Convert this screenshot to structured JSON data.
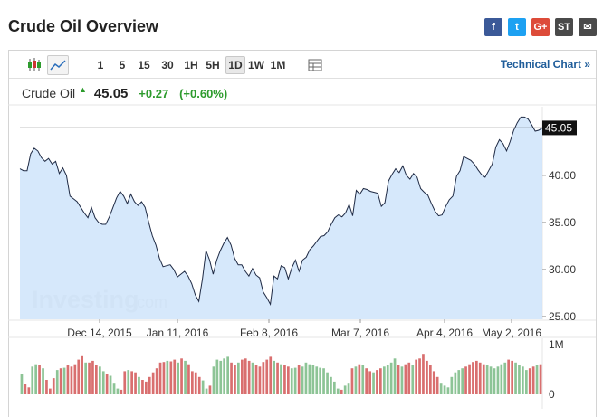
{
  "header": {
    "title": "Crude Oil Overview",
    "share_icons": [
      {
        "name": "facebook-icon",
        "glyph": "f",
        "color": "#3b5998"
      },
      {
        "name": "twitter-icon",
        "glyph": "t",
        "color": "#1da1f2"
      },
      {
        "name": "google-plus-icon",
        "glyph": "G+",
        "color": "#dd4b39"
      },
      {
        "name": "stocktwits-icon",
        "glyph": "ST",
        "color": "#4a4a4a"
      },
      {
        "name": "email-icon",
        "glyph": "✉",
        "color": "#4a4a4a"
      }
    ]
  },
  "toolbar": {
    "intervals": [
      "1",
      "5",
      "15",
      "30",
      "1H",
      "5H",
      "1D",
      "1W",
      "1M"
    ],
    "active_interval": "1D",
    "technical_chart_label": "Technical Chart »"
  },
  "quote": {
    "name": "Crude Oil",
    "direction": "up",
    "price": "45.05",
    "change": "+0.27",
    "change_pct": "(+0.60%)"
  },
  "chart_data": {
    "type": "area",
    "watermark": "Investing",
    "watermark_suffix": ".com",
    "x_tick_labels": [
      "Dec 14, 2015",
      "Jan 11, 2016",
      "Feb 8, 2016",
      "Mar 7, 2016",
      "Apr 4, 2016",
      "May 2, 2016"
    ],
    "y_ticks": [
      25.0,
      30.0,
      35.0,
      40.0
    ],
    "y_tick_labels": [
      "25.00",
      "30.00",
      "35.00",
      "40.00"
    ],
    "ylim": [
      24.7,
      47.3
    ],
    "last_price_label": "45.05",
    "last_price": 45.05,
    "series": [
      {
        "values": [
          40.7,
          40.5,
          40.5,
          42.3,
          42.9,
          42.6,
          41.9,
          41.5,
          41.8,
          41.2,
          41.5,
          40.2,
          40.8,
          40.0,
          37.8,
          37.5,
          37.2,
          36.6,
          36.0,
          35.5,
          36.6,
          35.5,
          35.0,
          34.8,
          34.8,
          35.6,
          36.6,
          37.6,
          38.3,
          37.8,
          37.0,
          38.0,
          37.2,
          36.8,
          37.2,
          36.6,
          35.0,
          33.6,
          32.6,
          31.2,
          30.3,
          30.4,
          30.5,
          30.0,
          29.2,
          29.5,
          29.8,
          29.3,
          28.5,
          27.3,
          26.6,
          29.0,
          32.0,
          31.0,
          29.5,
          31.0,
          32.0,
          32.8,
          33.4,
          32.6,
          31.2,
          30.5,
          30.5,
          29.8,
          29.3,
          30.1,
          29.4,
          29.1,
          27.6,
          27.0,
          26.3,
          29.3,
          29.0,
          30.4,
          30.2,
          29.0,
          30.2,
          31.0,
          29.8,
          31.0,
          31.3,
          32.1,
          32.5,
          33.0,
          33.5,
          33.6,
          34.0,
          34.8,
          35.5,
          35.8,
          35.6,
          36.0,
          36.9,
          35.7,
          38.4,
          38.0,
          38.6,
          38.5,
          38.3,
          38.2,
          38.1,
          36.7,
          37.1,
          39.4,
          40.1,
          40.7,
          40.3,
          41.0,
          40.0,
          39.6,
          40.2,
          39.8,
          38.6,
          38.2,
          37.9,
          37.0,
          36.2,
          35.7,
          35.8,
          36.7,
          37.4,
          37.8,
          39.9,
          40.5,
          42.0,
          41.8,
          41.6,
          41.2,
          40.6,
          40.1,
          39.8,
          40.5,
          41.2,
          43.0,
          43.8,
          43.4,
          42.6,
          43.6,
          44.8,
          45.6,
          46.2,
          46.2,
          46.0,
          45.4,
          44.7,
          44.8,
          45.05
        ]
      }
    ],
    "volume": {
      "max_label": "1M",
      "min_label": "0",
      "up_color": "#8dc496",
      "down_color": "#d96f6f",
      "values": [
        0.35,
        0.18,
        0.12,
        0.48,
        0.52,
        0.5,
        0.45,
        0.25,
        0.1,
        0.28,
        0.42,
        0.45,
        0.46,
        0.5,
        0.48,
        0.52,
        0.6,
        0.66,
        0.55,
        0.55,
        0.58,
        0.5,
        0.48,
        0.4,
        0.36,
        0.32,
        0.2,
        0.1,
        0.08,
        0.4,
        0.42,
        0.4,
        0.38,
        0.3,
        0.25,
        0.22,
        0.3,
        0.38,
        0.45,
        0.55,
        0.56,
        0.58,
        0.57,
        0.6,
        0.55,
        0.62,
        0.58,
        0.52,
        0.4,
        0.38,
        0.3,
        0.24,
        0.1,
        0.15,
        0.48,
        0.6,
        0.58,
        0.62,
        0.65,
        0.55,
        0.5,
        0.55,
        0.6,
        0.62,
        0.58,
        0.55,
        0.5,
        0.48,
        0.56,
        0.6,
        0.65,
        0.58,
        0.55,
        0.52,
        0.5,
        0.48,
        0.45,
        0.46,
        0.5,
        0.48,
        0.55,
        0.52,
        0.5,
        0.48,
        0.46,
        0.45,
        0.38,
        0.3,
        0.22,
        0.1,
        0.08,
        0.15,
        0.2,
        0.45,
        0.48,
        0.52,
        0.5,
        0.45,
        0.4,
        0.38,
        0.42,
        0.45,
        0.48,
        0.5,
        0.55,
        0.62,
        0.5,
        0.48,
        0.52,
        0.55,
        0.5,
        0.6,
        0.62,
        0.7,
        0.58,
        0.5,
        0.4,
        0.3,
        0.2,
        0.15,
        0.12,
        0.3,
        0.38,
        0.42,
        0.45,
        0.48,
        0.52,
        0.56,
        0.58,
        0.55,
        0.52,
        0.5,
        0.48,
        0.45,
        0.48,
        0.52,
        0.55,
        0.6,
        0.58,
        0.55,
        0.5,
        0.48,
        0.42,
        0.45,
        0.48,
        0.5,
        0.52
      ],
      "up": [
        1,
        0,
        0,
        1,
        1,
        0,
        1,
        0,
        0,
        0,
        1,
        0,
        1,
        0,
        0,
        0,
        0,
        0,
        1,
        0,
        0,
        0,
        1,
        1,
        0,
        1,
        1,
        1,
        0,
        0,
        1,
        0,
        0,
        1,
        0,
        0,
        0,
        0,
        0,
        0,
        0,
        1,
        0,
        0,
        1,
        0,
        1,
        0,
        0,
        0,
        0,
        1,
        1,
        0,
        1,
        1,
        1,
        1,
        1,
        0,
        0,
        1,
        0,
        0,
        0,
        1,
        0,
        0,
        0,
        0,
        0,
        1,
        0,
        1,
        0,
        0,
        1,
        1,
        0,
        1,
        1,
        1,
        1,
        1,
        1,
        1,
        1,
        1,
        1,
        1,
        0,
        1,
        1,
        0,
        1,
        0,
        1,
        0,
        0,
        1,
        0,
        0,
        1,
        1,
        1,
        1,
        0,
        1,
        0,
        0,
        1,
        0,
        0,
        0,
        0,
        0,
        0,
        0,
        1,
        1,
        1,
        1,
        1,
        1,
        1,
        0,
        0,
        0,
        0,
        0,
        0,
        1,
        1,
        1,
        1,
        1,
        1,
        0,
        0,
        1,
        1,
        1,
        1,
        0,
        0,
        1,
        0
      ]
    }
  }
}
